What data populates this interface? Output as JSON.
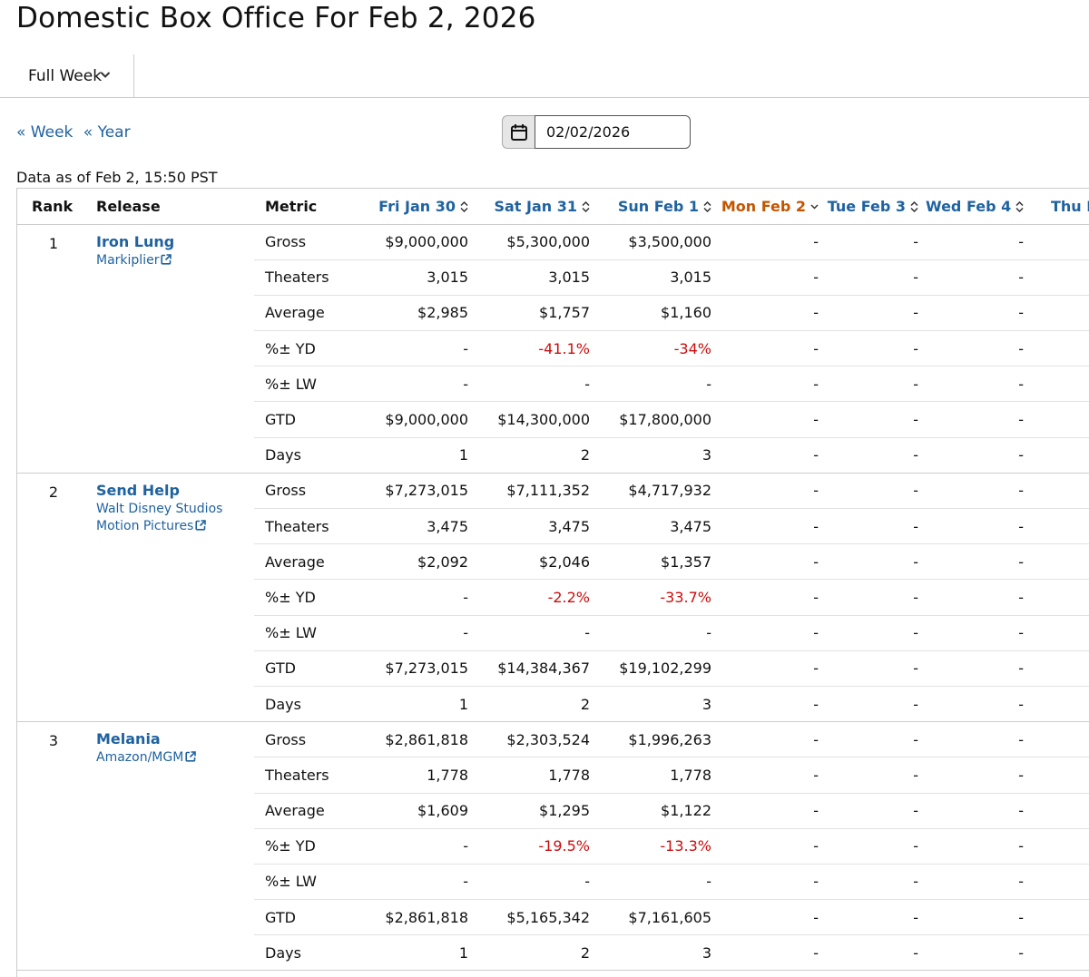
{
  "page": {
    "title": "Domestic Box Office For Feb 2, 2026"
  },
  "tabs": {
    "period_label": "Full Week"
  },
  "nav": {
    "week_link": "« Week",
    "year_link": "« Year"
  },
  "date_picker": {
    "value": "02/02/2026"
  },
  "as_of": "Data as of Feb 2, 15:50 PST",
  "table": {
    "headers": {
      "rank": "Rank",
      "release": "Release",
      "metric": "Metric",
      "days": [
        "Fri Jan 30",
        "Sat Jan 31",
        "Sun Feb 1",
        "Mon Feb 2",
        "Tue Feb 3",
        "Wed Feb 4",
        "Thu Fe"
      ]
    },
    "active_day_index": 3,
    "releases": [
      {
        "rank": "1",
        "title": "Iron Lung",
        "distributor": "Markiplier",
        "rows": [
          {
            "metric": "Gross",
            "values": [
              "$9,000,000",
              "$5,300,000",
              "$3,500,000",
              "-",
              "-",
              "-",
              ""
            ]
          },
          {
            "metric": "Theaters",
            "values": [
              "3,015",
              "3,015",
              "3,015",
              "-",
              "-",
              "-",
              ""
            ]
          },
          {
            "metric": "Average",
            "values": [
              "$2,985",
              "$1,757",
              "$1,160",
              "-",
              "-",
              "-",
              ""
            ]
          },
          {
            "metric": "%± YD",
            "values": [
              "-",
              "-41.1%",
              "-34%",
              "-",
              "-",
              "-",
              ""
            ]
          },
          {
            "metric": "%± LW",
            "values": [
              "-",
              "-",
              "-",
              "-",
              "-",
              "-",
              ""
            ]
          },
          {
            "metric": "GTD",
            "values": [
              "$9,000,000",
              "$14,300,000",
              "$17,800,000",
              "-",
              "-",
              "-",
              ""
            ]
          },
          {
            "metric": "Days",
            "values": [
              "1",
              "2",
              "3",
              "-",
              "-",
              "-",
              ""
            ]
          }
        ]
      },
      {
        "rank": "2",
        "title": "Send Help",
        "distributor": "Walt Disney Studios Motion Pictures",
        "rows": [
          {
            "metric": "Gross",
            "values": [
              "$7,273,015",
              "$7,111,352",
              "$4,717,932",
              "-",
              "-",
              "-",
              ""
            ]
          },
          {
            "metric": "Theaters",
            "values": [
              "3,475",
              "3,475",
              "3,475",
              "-",
              "-",
              "-",
              ""
            ]
          },
          {
            "metric": "Average",
            "values": [
              "$2,092",
              "$2,046",
              "$1,357",
              "-",
              "-",
              "-",
              ""
            ]
          },
          {
            "metric": "%± YD",
            "values": [
              "-",
              "-2.2%",
              "-33.7%",
              "-",
              "-",
              "-",
              ""
            ]
          },
          {
            "metric": "%± LW",
            "values": [
              "-",
              "-",
              "-",
              "-",
              "-",
              "-",
              ""
            ]
          },
          {
            "metric": "GTD",
            "values": [
              "$7,273,015",
              "$14,384,367",
              "$19,102,299",
              "-",
              "-",
              "-",
              ""
            ]
          },
          {
            "metric": "Days",
            "values": [
              "1",
              "2",
              "3",
              "-",
              "-",
              "-",
              ""
            ]
          }
        ]
      },
      {
        "rank": "3",
        "title": "Melania",
        "distributor": "Amazon/MGM",
        "rows": [
          {
            "metric": "Gross",
            "values": [
              "$2,861,818",
              "$2,303,524",
              "$1,996,263",
              "-",
              "-",
              "-",
              ""
            ]
          },
          {
            "metric": "Theaters",
            "values": [
              "1,778",
              "1,778",
              "1,778",
              "-",
              "-",
              "-",
              ""
            ]
          },
          {
            "metric": "Average",
            "values": [
              "$1,609",
              "$1,295",
              "$1,122",
              "-",
              "-",
              "-",
              ""
            ]
          },
          {
            "metric": "%± YD",
            "values": [
              "-",
              "-19.5%",
              "-13.3%",
              "-",
              "-",
              "-",
              ""
            ]
          },
          {
            "metric": "%± LW",
            "values": [
              "-",
              "-",
              "-",
              "-",
              "-",
              "-",
              ""
            ]
          },
          {
            "metric": "GTD",
            "values": [
              "$2,861,818",
              "$5,165,342",
              "$7,161,605",
              "-",
              "-",
              "-",
              ""
            ]
          },
          {
            "metric": "Days",
            "values": [
              "1",
              "2",
              "3",
              "-",
              "-",
              "-",
              ""
            ]
          }
        ]
      }
    ]
  },
  "colors": {
    "link": "#1f62a0",
    "active_sort": "#c45500",
    "negative": "#cc0c0c",
    "border": "#cccccc"
  },
  "icons": {
    "tab_dropdown": "chevron-down-icon",
    "calendar": "calendar-icon",
    "external_link": "external-link-icon",
    "sort": "sort-icon"
  }
}
